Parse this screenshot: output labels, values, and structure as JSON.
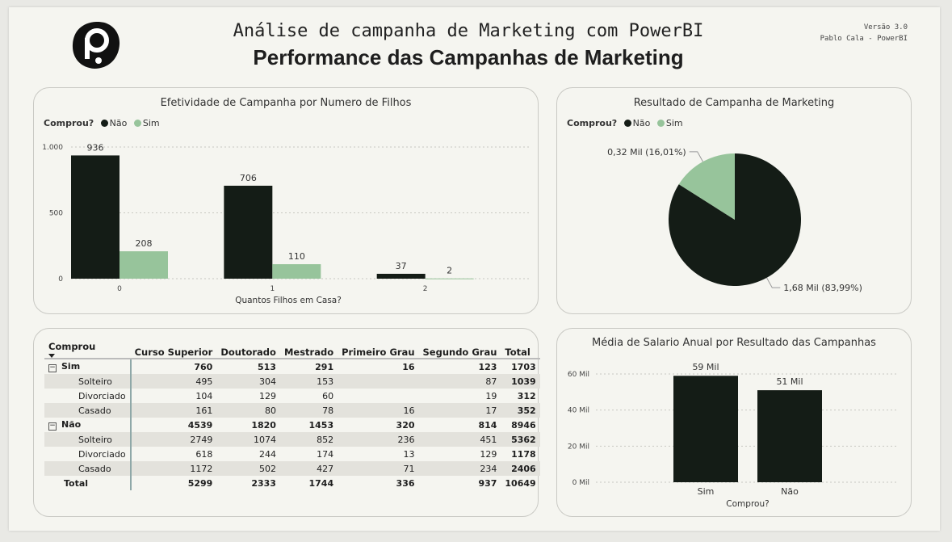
{
  "header": {
    "title_line1": "Análise de campanha de Marketing com PowerBI",
    "title_line2": "Performance das Campanhas de Marketing",
    "version": "Versão 3.0",
    "author": "Pablo Cala - PowerBI",
    "logo_icon": "powerbi-p-logo-icon"
  },
  "colors": {
    "nao": "#141c16",
    "sim": "#97c49b"
  },
  "legend": {
    "title": "Comprou?",
    "nao": "Não",
    "sim": "Sim"
  },
  "card1": {
    "title": "Efetividade de Campanha por Numero de Filhos"
  },
  "card2": {
    "title": "Resultado de Campanha de Marketing"
  },
  "card3": {
    "headers": [
      "Comprou",
      "Curso Superior",
      "Doutorado",
      "Mestrado",
      "Primeiro Grau",
      "Segundo Grau",
      "Total"
    ],
    "rows": [
      {
        "label": "Sim",
        "group": true,
        "values": [
          "760",
          "513",
          "291",
          "16",
          "123",
          "1703"
        ]
      },
      {
        "label": "Solteiro",
        "group": false,
        "values": [
          "495",
          "304",
          "153",
          "",
          "87",
          "1039"
        ]
      },
      {
        "label": "Divorciado",
        "group": false,
        "values": [
          "104",
          "129",
          "60",
          "",
          "19",
          "312"
        ]
      },
      {
        "label": "Casado",
        "group": false,
        "values": [
          "161",
          "80",
          "78",
          "16",
          "17",
          "352"
        ]
      },
      {
        "label": "Não",
        "group": true,
        "values": [
          "4539",
          "1820",
          "1453",
          "320",
          "814",
          "8946"
        ]
      },
      {
        "label": "Solteiro",
        "group": false,
        "values": [
          "2749",
          "1074",
          "852",
          "236",
          "451",
          "5362"
        ]
      },
      {
        "label": "Divorciado",
        "group": false,
        "values": [
          "618",
          "244",
          "174",
          "13",
          "129",
          "1178"
        ]
      },
      {
        "label": "Casado",
        "group": false,
        "values": [
          "1172",
          "502",
          "427",
          "71",
          "234",
          "2406"
        ]
      }
    ],
    "total": {
      "label": "Total",
      "values": [
        "5299",
        "2333",
        "1744",
        "336",
        "937",
        "10649"
      ]
    }
  },
  "card4": {
    "title": "Média de Salario Anual por Resultado das Campanhas"
  },
  "chart_data": [
    {
      "type": "bar",
      "title": "Efetividade de Campanha por Numero de Filhos",
      "xlabel": "Quantos Filhos em Casa?",
      "ylabel": "",
      "categories": [
        "0",
        "1",
        "2"
      ],
      "series": [
        {
          "name": "Não",
          "values": [
            936,
            706,
            37
          ],
          "labels": [
            "936",
            "706",
            "37"
          ]
        },
        {
          "name": "Sim",
          "values": [
            208,
            110,
            2
          ],
          "labels": [
            "208",
            "110",
            "2"
          ]
        }
      ],
      "ylim": [
        0,
        1000
      ],
      "yticks": [
        0,
        500,
        1000
      ],
      "ytick_labels": [
        "0",
        "500",
        "1.000"
      ],
      "grid": true,
      "legend": "top-left"
    },
    {
      "type": "pie",
      "title": "Resultado de Campanha de Marketing",
      "slices": [
        {
          "name": "Não",
          "value": 1.68,
          "percent": 83.99,
          "label": "1,68 Mil (83,99%)"
        },
        {
          "name": "Sim",
          "value": 0.32,
          "percent": 16.01,
          "label": "0,32 Mil (16,01%)"
        }
      ],
      "legend": "top-left"
    },
    {
      "type": "bar",
      "title": "Média de Salario Anual por Resultado das Campanhas",
      "xlabel": "Comprou?",
      "ylabel": "",
      "categories": [
        "Sim",
        "Não"
      ],
      "values": [
        59000,
        51000
      ],
      "labels": [
        "59 Mil",
        "51 Mil"
      ],
      "ylim": [
        0,
        60000
      ],
      "yticks": [
        0,
        20000,
        40000,
        60000
      ],
      "ytick_labels": [
        "0 Mil",
        "20 Mil",
        "40 Mil",
        "60 Mil"
      ],
      "grid": true
    }
  ]
}
